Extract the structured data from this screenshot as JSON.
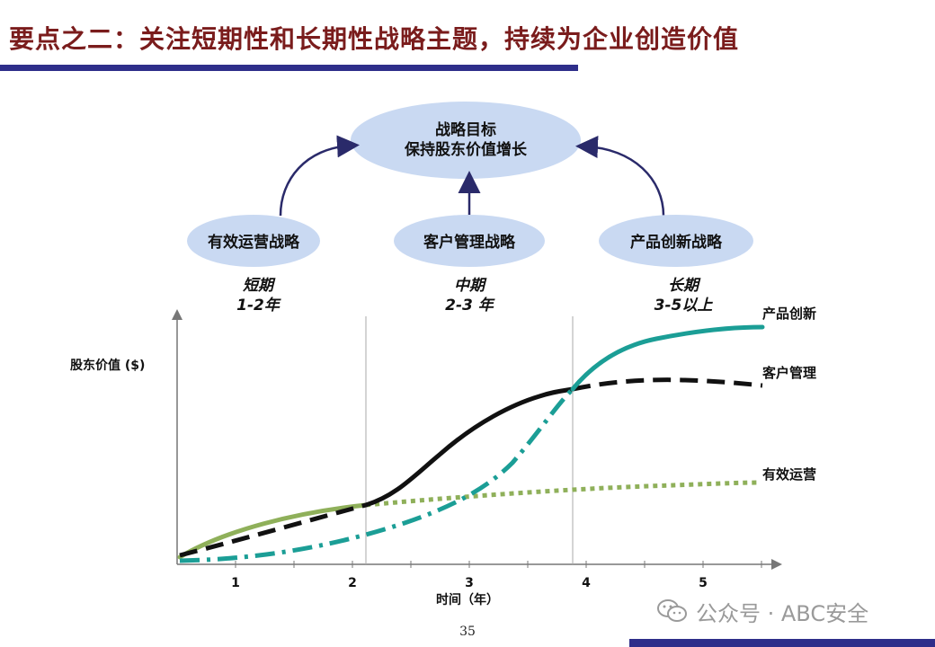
{
  "header": {
    "title": "要点之二：关注短期性和长期性战略主题，持续为企业创造价值"
  },
  "goal": {
    "line1": "战略目标",
    "line2": "保持股东价值增长"
  },
  "strategies": [
    {
      "label": "有效运营战略"
    },
    {
      "label": "客户管理战略"
    },
    {
      "label": "产品创新战略"
    }
  ],
  "terms": [
    {
      "name": "短期",
      "range": "1-2年"
    },
    {
      "name": "中期",
      "range": "2-3 年"
    },
    {
      "name": "长期",
      "range": "3-5以上"
    }
  ],
  "chart": {
    "ylabel": "股东价值 ($)",
    "xlabel": "时间（年）",
    "x_ticks": [
      "1",
      "2",
      "3",
      "4",
      "5"
    ],
    "curve_labels": {
      "product": "产品创新",
      "customer": "客户管理",
      "operation": "有效运营"
    }
  },
  "colors": {
    "title": "#7a1c1c",
    "bar": "#2e2e8a",
    "ellipse": "#c9d9f2",
    "arrow": "#2a2a6a",
    "product_curve": "#1b9e96",
    "customer_curve": "#111111",
    "operation_curve": "#8fb05a"
  },
  "footer": {
    "page": "35",
    "watermark": "公众号 · ABC安全"
  }
}
